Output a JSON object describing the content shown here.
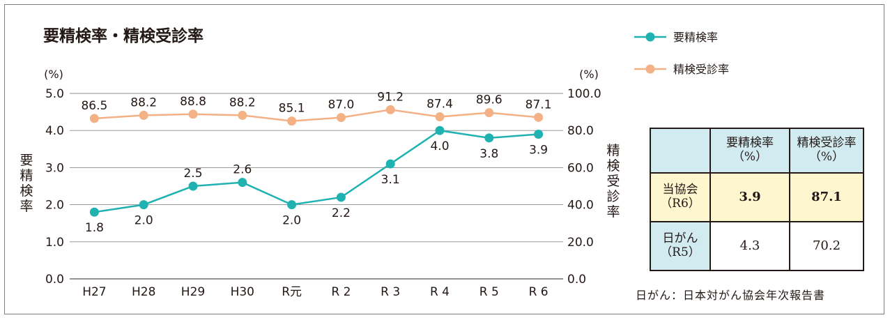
{
  "chart_data": {
    "type": "line",
    "title": "要精検率・精検受診率",
    "categories": [
      "H27",
      "H28",
      "H29",
      "H30",
      "R元",
      "R 2",
      "R 3",
      "R 4",
      "R 5",
      "R 6"
    ],
    "series": [
      {
        "name": "要精検率",
        "axis": "left",
        "color": "#1fb2b1",
        "values": [
          1.8,
          2.0,
          2.5,
          2.6,
          2.0,
          2.2,
          3.1,
          4.0,
          3.8,
          3.9
        ],
        "labels": [
          "1.8",
          "2.0",
          "2.5",
          "2.6",
          "2.0",
          "2.2",
          "3.1",
          "4.0",
          "3.8",
          "3.9"
        ]
      },
      {
        "name": "精検受診率",
        "axis": "right",
        "color": "#f4b185",
        "values": [
          86.5,
          88.2,
          88.8,
          88.2,
          85.1,
          87.0,
          91.2,
          87.4,
          89.6,
          87.1
        ],
        "labels": [
          "86.5",
          "88.2",
          "88.8",
          "88.2",
          "85.1",
          "87.0",
          "91.2",
          "87.4",
          "89.6",
          "87.1"
        ]
      }
    ],
    "y_left": {
      "label": "要精検率",
      "unit": "(%)",
      "range": [
        0,
        5
      ],
      "ticks": [
        "0.0",
        "1.0",
        "2.0",
        "3.0",
        "4.0",
        "5.0"
      ]
    },
    "y_right": {
      "label": "精検受診率",
      "unit": "(%)",
      "range": [
        0,
        100
      ],
      "ticks": [
        "0.0",
        "20.0",
        "40.0",
        "60.0",
        "80.0",
        "100.0"
      ]
    },
    "grid": true,
    "legend_position": "top-right"
  },
  "table": {
    "headers": [
      "要精検率\n（%）",
      "精検受診率\n（%）"
    ],
    "rows": [
      {
        "label": "当協会\n（R6）",
        "values": [
          "3.9",
          "87.1"
        ]
      },
      {
        "label": "日がん\n（R5）",
        "values": [
          "4.3",
          "70.2"
        ]
      }
    ]
  },
  "source_note": "日がん：日本対がん協会年次報告書"
}
